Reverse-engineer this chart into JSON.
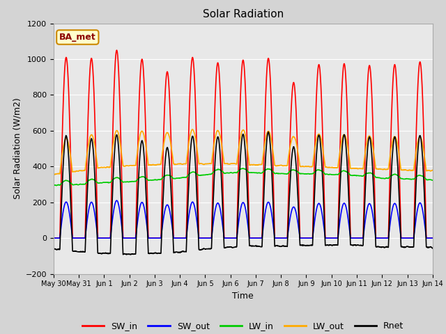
{
  "title": "Solar Radiation",
  "xlabel": "Time",
  "ylabel": "Solar Radiation (W/m2)",
  "ylim": [
    -200,
    1200
  ],
  "background_color": "#d4d4d4",
  "plot_bg_color": "#e8e8e8",
  "grid_color": "#ffffff",
  "annotation_text": "BA_met",
  "annotation_bg": "#ffffcc",
  "annotation_border": "#cc8800",
  "series": {
    "SW_in": {
      "color": "#ff0000",
      "lw": 1.2
    },
    "SW_out": {
      "color": "#0000ff",
      "lw": 1.2
    },
    "LW_in": {
      "color": "#00cc00",
      "lw": 1.2
    },
    "LW_out": {
      "color": "#ffaa00",
      "lw": 1.2
    },
    "Rnet": {
      "color": "#000000",
      "lw": 1.2
    }
  },
  "tick_labels": [
    "May 30",
    "May 31",
    "Jun 1",
    "Jun 2",
    "Jun 3",
    "Jun 4",
    "Jun 5",
    "Jun 6",
    "Jun 7",
    "Jun 8",
    "Jun 9",
    "Jun 10",
    "Jun 11",
    "Jun 12",
    "Jun 13",
    "Jun 14"
  ],
  "num_days": 15,
  "sw_in_peaks": [
    1010,
    1005,
    1050,
    1000,
    930,
    1010,
    980,
    995,
    1005,
    870,
    970,
    975,
    965,
    970,
    985
  ],
  "lw_in_base": [
    295,
    300,
    310,
    315,
    325,
    335,
    355,
    365,
    365,
    360,
    360,
    355,
    350,
    335,
    330,
    325
  ],
  "lw_out_base": [
    355,
    375,
    395,
    405,
    410,
    415,
    415,
    415,
    410,
    405,
    400,
    395,
    390,
    385,
    380,
    375
  ]
}
